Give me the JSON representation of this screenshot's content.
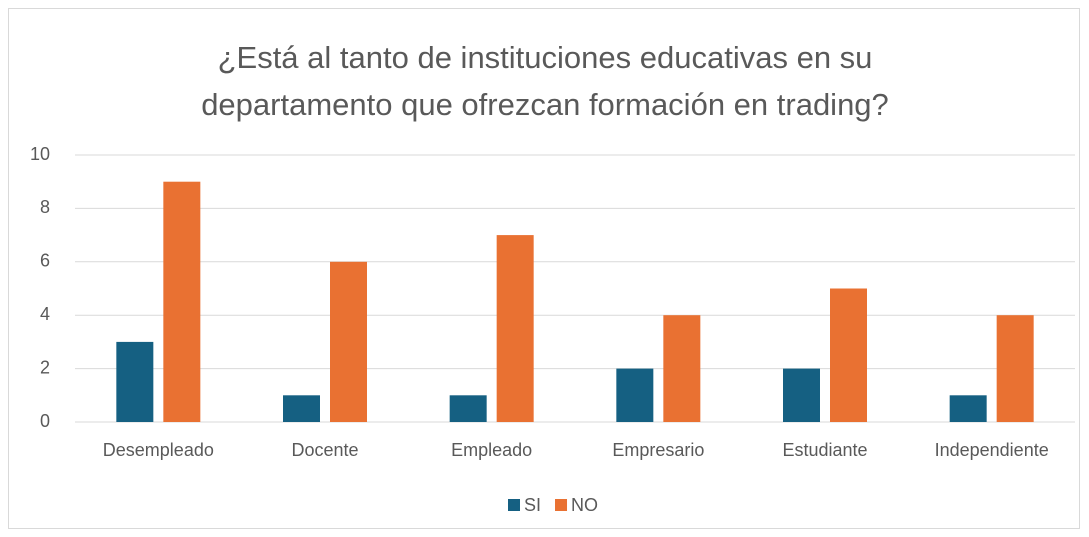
{
  "chart_data": {
    "type": "bar",
    "title": [
      "¿Está al tanto de instituciones educativas en su",
      "departamento que ofrezcan formación en trading?"
    ],
    "categories": [
      "Desempleado",
      "Docente",
      "Empleado",
      "Empresario",
      "Estudiante",
      "Independiente"
    ],
    "series": [
      {
        "name": "SI",
        "color": "#156082",
        "values": [
          3,
          1,
          1,
          2,
          2,
          1
        ]
      },
      {
        "name": "NO",
        "color": "#e97132",
        "values": [
          9,
          6,
          7,
          4,
          5,
          4
        ]
      }
    ],
    "ylim": [
      0,
      10
    ],
    "yticks": [
      0,
      2,
      4,
      6,
      8,
      10
    ],
    "grid": true,
    "legend": "bottom"
  }
}
